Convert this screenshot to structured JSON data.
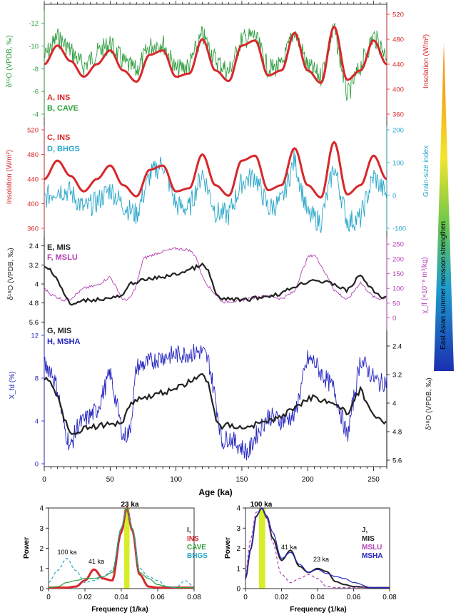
{
  "figure": {
    "age_axis_label": "Age (ka)",
    "monsoon_label": "East Asian summer monsoon strengthen"
  },
  "colors": {
    "ins": "#d6282b",
    "cave": "#2f9e3f",
    "bhgs": "#27a6c8",
    "mis": "#222222",
    "mslu": "#b43fb4",
    "msha": "#2424c0",
    "highlight": "#d8ee2a"
  },
  "panels": {
    "ab": {
      "label_a": "A, INS",
      "label_b": "B, CAVE",
      "left_axis_label": "δ¹⁸O (VPDB, ‰)",
      "right_axis_label": "Insolation (W/m²)"
    },
    "cd": {
      "label_c": "C, INS",
      "label_d": "D, BHGS",
      "left_axis_label": "Insolation (W/m²)",
      "right_axis_label": "Grain-size index"
    },
    "ef": {
      "label_e": "E, MIS",
      "label_f": "F, MSLU",
      "left_axis_label": "δ¹⁸O (VPDB, ‰)",
      "right_axis_label": "χ_lf (×10⁻⁸ m³/kg)"
    },
    "gh": {
      "label_g": "G, MIS",
      "label_h": "H, MSHA",
      "left_axis_label": "X_fd (%)",
      "right_axis_label": "δ¹⁸O (VPDB, ‰)"
    },
    "i": {
      "label": "I,",
      "series_ins": "INS",
      "series_cave": "CAVE",
      "series_bhgs": "BHGS",
      "peak_23": "23 ka",
      "peak_41": "41 ka",
      "peak_100": "100 ka",
      "ylabel": "Power",
      "xlabel": "Frequency (1/ka)"
    },
    "j": {
      "label": "J,",
      "series_mis": "MIS",
      "series_mslu": "MSLU",
      "series_msha": "MSHA",
      "peak_100": "100 ka",
      "peak_41": "41 ka",
      "peak_23": "23 ka",
      "ylabel": "Power",
      "xlabel": "Frequency (1/ka)"
    }
  },
  "chart_data": [
    {
      "type": "line",
      "title": "",
      "xlabel": "Age (ka)",
      "x_ticks": [
        0,
        50,
        100,
        150,
        200,
        250
      ],
      "xlim": [
        0,
        260
      ],
      "left_axis": {
        "label": "δ18O (VPDB, ‰)",
        "ticks": [
          -12,
          -10,
          -8,
          -6,
          -4
        ],
        "lim": [
          -12.8,
          -4
        ],
        "inverted": true
      },
      "right_axis": {
        "label": "Insolation (W/m2)",
        "ticks": [
          360,
          400,
          440,
          480,
          520
        ],
        "lim": [
          360,
          520
        ]
      },
      "series": [
        {
          "name": "A, INS",
          "axis": "right",
          "x": [
            0,
            10,
            20,
            30,
            40,
            50,
            60,
            70,
            80,
            90,
            100,
            110,
            120,
            130,
            140,
            150,
            160,
            170,
            180,
            190,
            200,
            210,
            220,
            230,
            240,
            250,
            260
          ],
          "values": [
            440,
            470,
            445,
            420,
            440,
            462,
            430,
            412,
            455,
            462,
            420,
            425,
            480,
            430,
            413,
            470,
            478,
            422,
            430,
            490,
            430,
            410,
            500,
            415,
            430,
            478,
            440
          ]
        },
        {
          "name": "B, CAVE",
          "axis": "left",
          "x": [
            0,
            10,
            20,
            30,
            40,
            50,
            60,
            70,
            80,
            90,
            100,
            110,
            120,
            130,
            140,
            150,
            160,
            170,
            180,
            190,
            200,
            210,
            220,
            230,
            240,
            250,
            260
          ],
          "values": [
            -9.0,
            -10.8,
            -9.6,
            -8.2,
            -9.4,
            -10.2,
            -8.6,
            -7.8,
            -10.0,
            -10.3,
            -7.9,
            -8.3,
            -11.0,
            -8.8,
            -7.7,
            -10.6,
            -10.9,
            -8.0,
            -8.2,
            -11.4,
            -8.2,
            -7.3,
            -11.6,
            -5.6,
            -8.2,
            -10.9,
            -9.2
          ]
        }
      ]
    },
    {
      "type": "line",
      "title": "",
      "xlabel": "Age (ka)",
      "xlim": [
        0,
        260
      ],
      "left_axis": {
        "label": "Insolation (W/m2)",
        "ticks": [
          360,
          400,
          440,
          480,
          520
        ],
        "lim": [
          360,
          520
        ]
      },
      "right_axis": {
        "label": "Grain-size index",
        "ticks": [
          -100,
          0,
          100,
          200
        ],
        "lim": [
          -100,
          200
        ]
      },
      "series": [
        {
          "name": "C, INS",
          "axis": "left",
          "x": [
            0,
            10,
            20,
            30,
            40,
            50,
            60,
            70,
            80,
            90,
            100,
            110,
            120,
            130,
            140,
            150,
            160,
            170,
            180,
            190,
            200,
            210,
            220,
            230,
            240,
            250,
            260
          ],
          "values": [
            440,
            470,
            445,
            420,
            440,
            462,
            430,
            412,
            455,
            462,
            420,
            425,
            480,
            430,
            413,
            470,
            478,
            422,
            430,
            490,
            430,
            410,
            500,
            415,
            430,
            478,
            440
          ]
        },
        {
          "name": "D, BHGS",
          "axis": "right",
          "x": [
            0,
            10,
            20,
            30,
            40,
            50,
            60,
            70,
            80,
            90,
            100,
            110,
            120,
            130,
            140,
            150,
            160,
            170,
            180,
            190,
            200,
            210,
            220,
            230,
            240,
            250,
            260
          ],
          "values": [
            -10,
            20,
            10,
            -40,
            -20,
            20,
            -30,
            -60,
            60,
            100,
            -30,
            -40,
            70,
            -50,
            -60,
            40,
            60,
            -40,
            -20,
            110,
            -60,
            -80,
            90,
            -80,
            -70,
            60,
            0
          ]
        }
      ]
    },
    {
      "type": "line",
      "title": "",
      "xlabel": "Age (ka)",
      "xlim": [
        0,
        260
      ],
      "left_axis": {
        "label": "δ18O (VPDB, ‰)",
        "ticks": [
          2.4,
          3.2,
          4,
          4.8,
          5.6
        ],
        "lim": [
          2.2,
          5.8
        ],
        "inverted": true
      },
      "right_axis": {
        "label": "χlf (×10-8 m3/kg)",
        "ticks": [
          0,
          50,
          100,
          150,
          200,
          250
        ],
        "lim": [
          -30,
          260
        ]
      },
      "series": [
        {
          "name": "E, MIS",
          "axis": "left",
          "x": [
            0,
            5,
            10,
            15,
            20,
            30,
            40,
            50,
            60,
            65,
            70,
            80,
            90,
            100,
            110,
            115,
            120,
            125,
            130,
            135,
            140,
            150,
            160,
            170,
            180,
            190,
            200,
            205,
            210,
            220,
            230,
            240,
            245,
            250,
            255,
            260
          ],
          "values": [
            3.3,
            3.4,
            3.8,
            4.4,
            4.9,
            4.7,
            4.65,
            4.6,
            4.5,
            4.0,
            3.9,
            3.8,
            3.7,
            3.6,
            3.4,
            3.3,
            3.2,
            3.5,
            4.4,
            4.7,
            4.6,
            4.7,
            4.6,
            4.5,
            4.4,
            4.1,
            3.9,
            3.8,
            3.9,
            4.0,
            4.3,
            3.6,
            4.0,
            4.3,
            4.5,
            4.6
          ]
        },
        {
          "name": "F, MSLU",
          "axis": "right",
          "x": [
            0,
            5,
            10,
            15,
            20,
            30,
            40,
            50,
            55,
            60,
            65,
            70,
            75,
            80,
            90,
            100,
            110,
            115,
            120,
            125,
            130,
            135,
            140,
            150,
            160,
            170,
            180,
            190,
            195,
            200,
            205,
            210,
            220,
            230,
            240,
            250,
            255,
            260
          ],
          "values": [
            100,
            80,
            70,
            60,
            65,
            100,
            110,
            140,
            100,
            60,
            65,
            110,
            200,
            210,
            225,
            235,
            230,
            210,
            140,
            105,
            80,
            55,
            55,
            60,
            70,
            75,
            65,
            90,
            150,
            205,
            215,
            180,
            95,
            60,
            120,
            70,
            65,
            70
          ]
        }
      ]
    },
    {
      "type": "line",
      "title": "",
      "xlabel": "Age (ka)",
      "xlim": [
        0,
        260
      ],
      "left_axis": {
        "label": "Xfd (%)",
        "ticks": [
          0,
          4,
          8,
          12
        ],
        "lim": [
          0,
          12
        ]
      },
      "right_axis": {
        "label": "δ18O (VPDB, ‰)",
        "ticks": [
          2.4,
          3.2,
          4,
          4.8,
          5.6
        ],
        "lim": [
          2.1,
          5.7
        ],
        "inverted": true
      },
      "series": [
        {
          "name": "G, MIS",
          "axis": "right",
          "x": [
            0,
            5,
            10,
            15,
            20,
            30,
            40,
            50,
            60,
            65,
            70,
            80,
            90,
            100,
            110,
            115,
            120,
            125,
            130,
            135,
            140,
            150,
            160,
            170,
            180,
            190,
            200,
            205,
            210,
            220,
            230,
            240,
            245,
            250,
            255,
            260
          ],
          "values": [
            3.3,
            3.4,
            3.8,
            4.4,
            4.9,
            4.7,
            4.65,
            4.6,
            4.5,
            4.0,
            3.9,
            3.8,
            3.7,
            3.6,
            3.4,
            3.3,
            3.2,
            3.5,
            4.4,
            4.7,
            4.6,
            4.7,
            4.6,
            4.5,
            4.4,
            4.1,
            3.9,
            3.8,
            3.9,
            4.0,
            4.3,
            3.6,
            4.0,
            4.3,
            4.5,
            4.6
          ]
        },
        {
          "name": "H, MSHA",
          "axis": "left",
          "x": [
            0,
            5,
            10,
            15,
            20,
            25,
            30,
            40,
            50,
            55,
            60,
            65,
            70,
            80,
            90,
            100,
            110,
            120,
            125,
            130,
            135,
            140,
            150,
            155,
            160,
            170,
            180,
            190,
            200,
            205,
            210,
            220,
            230,
            240,
            250,
            255,
            260
          ],
          "values": [
            9.2,
            8.8,
            7.0,
            3.5,
            1.5,
            3.5,
            4.0,
            5.0,
            8.5,
            5.5,
            2.5,
            3.0,
            9.0,
            9.5,
            10.0,
            10.2,
            10.3,
            10.5,
            9.5,
            6.0,
            2.0,
            2.5,
            1.5,
            1.0,
            2.5,
            4.5,
            4.0,
            4.5,
            9.8,
            9.5,
            8.5,
            7.0,
            2.5,
            9.8,
            8.0,
            7.5,
            7.8
          ]
        }
      ]
    },
    {
      "type": "line",
      "title": "",
      "xlabel": "Frequency (1/ka)",
      "ylabel": "Power",
      "x_ticks": [
        0,
        0.02,
        0.04,
        0.06,
        0.08
      ],
      "y_ticks": [
        0,
        1,
        2,
        3,
        4
      ],
      "xlim": [
        0,
        0.08
      ],
      "ylim": [
        0,
        4
      ],
      "highlight_band": [
        0.0415,
        0.0445
      ],
      "annotations": [
        "100 ka",
        "41 ka",
        "23 ka"
      ],
      "x": [
        0,
        0.005,
        0.01,
        0.015,
        0.02,
        0.025,
        0.03,
        0.035,
        0.04,
        0.043,
        0.046,
        0.05,
        0.055,
        0.06,
        0.065,
        0.07,
        0.075,
        0.08
      ],
      "series": [
        {
          "name": "INS",
          "values": [
            0.05,
            0.05,
            0.05,
            0.1,
            0.4,
            0.95,
            0.5,
            0.4,
            2.8,
            4.0,
            2.9,
            0.7,
            0.1,
            0.05,
            0.05,
            0.05,
            0.05,
            0.05
          ]
        },
        {
          "name": "CAVE",
          "values": [
            0.05,
            0.1,
            0.3,
            0.4,
            0.5,
            0.5,
            0.6,
            0.8,
            3.0,
            4.0,
            3.0,
            0.8,
            0.5,
            0.2,
            0.1,
            0.05,
            0.05,
            0.05
          ]
        },
        {
          "name": "BHGS",
          "values": [
            0.3,
            0.9,
            1.5,
            0.9,
            0.3,
            0.4,
            0.6,
            0.9,
            3.0,
            4.0,
            3.0,
            1.0,
            0.6,
            0.4,
            0.1,
            0.05,
            0.4,
            0.1
          ]
        }
      ]
    },
    {
      "type": "line",
      "title": "",
      "xlabel": "Frequency (1/ka)",
      "ylabel": "Power",
      "x_ticks": [
        0,
        0.02,
        0.04,
        0.06,
        0.08
      ],
      "y_ticks": [
        0,
        1,
        2,
        3,
        4
      ],
      "xlim": [
        0,
        0.08
      ],
      "ylim": [
        0,
        4
      ],
      "highlight_band": [
        0.0075,
        0.011
      ],
      "annotations": [
        "100 ka",
        "41 ka",
        "23 ka"
      ],
      "x": [
        0,
        0.003,
        0.006,
        0.009,
        0.012,
        0.015,
        0.02,
        0.025,
        0.03,
        0.035,
        0.04,
        0.045,
        0.05,
        0.055,
        0.06,
        0.07,
        0.08
      ],
      "series": [
        {
          "name": "MIS",
          "values": [
            0.5,
            2.0,
            3.6,
            4.0,
            3.5,
            2.5,
            1.4,
            1.9,
            1.1,
            0.8,
            1.0,
            0.85,
            0.35,
            0.2,
            0.1,
            0.05,
            0.05
          ]
        },
        {
          "name": "MSLU",
          "values": [
            0.8,
            2.5,
            3.8,
            4.0,
            3.5,
            2.3,
            0.7,
            0.3,
            0.5,
            0.7,
            0.5,
            0.1,
            0.05,
            0.05,
            0.05,
            0.05,
            0.05
          ]
        },
        {
          "name": "MSHA",
          "values": [
            0.5,
            2.0,
            3.6,
            4.0,
            3.6,
            2.8,
            1.5,
            1.8,
            1.2,
            0.8,
            0.95,
            0.75,
            0.6,
            0.5,
            0.3,
            0.05,
            0.05
          ]
        }
      ]
    }
  ]
}
